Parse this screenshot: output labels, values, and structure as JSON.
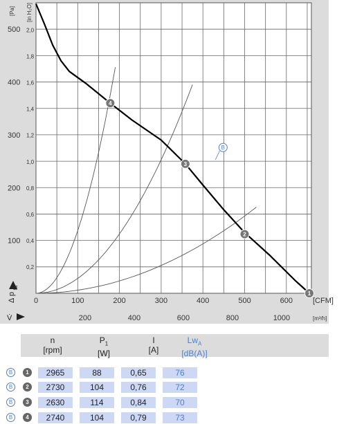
{
  "chart_data": {
    "type": "line",
    "x_unit_primary": "[CFM]",
    "x_unit_secondary": "[m³/h]",
    "y_unit_primary": "[Pa]",
    "y_unit_secondary": "[in H₂O]",
    "y_axis_label": "Δ p",
    "y_axis_label_sub": "fa",
    "x_axis_label": "V̇",
    "x_ticks_primary": [
      0,
      100,
      200,
      300,
      400,
      500,
      600
    ],
    "x_ticks_secondary": [
      200,
      400,
      600,
      800,
      1000
    ],
    "y_ticks_primary": [
      100,
      200,
      300,
      400,
      500
    ],
    "y_ticks_secondary": [
      "0,2",
      "0,4",
      "0,6",
      "0,8",
      "1,0",
      "1,2",
      "1,4",
      "1,6",
      "1,8",
      "2,0"
    ],
    "xlim": [
      0,
      660
    ],
    "ylim": [
      0,
      550
    ],
    "curve_label": "B",
    "series": [
      {
        "name": "B",
        "x": [
          0,
          20,
          40,
          60,
          80,
          120,
          178,
          230,
          300,
          358,
          400,
          450,
          500,
          560,
          620,
          655
        ],
        "y": [
          548,
          510,
          470,
          440,
          420,
          397,
          360,
          328,
          290,
          245,
          205,
          158,
          115,
          72,
          25,
          0
        ]
      }
    ],
    "system_curves": [
      {
        "label": "4",
        "x_end": 190,
        "y_end": 428
      },
      {
        "label": "3",
        "x_end": 375,
        "y_end": 395
      },
      {
        "label": "2",
        "x_end": 528,
        "y_end": 163
      }
    ],
    "operating_points": [
      {
        "label": "1",
        "x": 655,
        "y": 0
      },
      {
        "label": "2",
        "x": 500,
        "y": 112
      },
      {
        "label": "3",
        "x": 358,
        "y": 245
      },
      {
        "label": "4",
        "x": 178,
        "y": 360
      }
    ]
  },
  "table": {
    "headers": [
      {
        "main": "n",
        "sub": "",
        "unit": "[rpm]"
      },
      {
        "main": "P",
        "sub": "1",
        "unit": "[W]"
      },
      {
        "main": "I",
        "sub": "",
        "unit": "[A]"
      },
      {
        "main": "Lw",
        "sub": "A",
        "unit": "[dB(A)]"
      }
    ],
    "rows": [
      {
        "curve": "B",
        "point": "1",
        "cells": [
          "2965",
          "88",
          "0,65",
          "76"
        ]
      },
      {
        "curve": "B",
        "point": "2",
        "cells": [
          "2730",
          "104",
          "0,76",
          "72"
        ]
      },
      {
        "curve": "B",
        "point": "3",
        "cells": [
          "2630",
          "114",
          "0,84",
          "70"
        ]
      },
      {
        "curve": "B",
        "point": "4",
        "cells": [
          "2740",
          "104",
          "0,79",
          "73"
        ]
      }
    ]
  }
}
